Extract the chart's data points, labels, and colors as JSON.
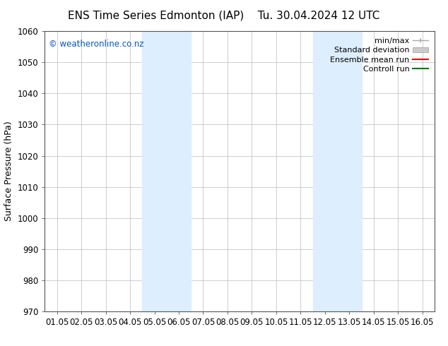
{
  "title_left": "ENS Time Series Edmonton (IAP)",
  "title_right": "Tu. 30.04.2024 12 UTC",
  "ylabel": "Surface Pressure (hPa)",
  "xlim_labels": [
    "01.05",
    "02.05",
    "03.05",
    "04.05",
    "05.05",
    "06.05",
    "07.05",
    "08.05",
    "09.05",
    "10.05",
    "11.05",
    "12.05",
    "13.05",
    "14.05",
    "15.05",
    "16.05"
  ],
  "ylim": [
    970,
    1060
  ],
  "yticks": [
    970,
    980,
    990,
    1000,
    1010,
    1020,
    1030,
    1040,
    1050,
    1060
  ],
  "shaded_bands": [
    {
      "xstart": 4,
      "xend": 6
    },
    {
      "xstart": 11,
      "xend": 13
    }
  ],
  "shaded_color": "#ddeeff",
  "watermark": "© weatheronline.co.nz",
  "watermark_color": "#0055cc",
  "background_color": "#ffffff",
  "legend_entries": [
    {
      "label": "min/max",
      "color": "#aaaaaa",
      "type": "minmax"
    },
    {
      "label": "Standard deviation",
      "color": "#cccccc",
      "type": "patch"
    },
    {
      "label": "Ensemble mean run",
      "color": "#ff0000",
      "type": "line"
    },
    {
      "label": "Controll run",
      "color": "#007700",
      "type": "line"
    }
  ],
  "grid_color": "#bbbbbb",
  "tick_label_fontsize": 8.5,
  "title_fontsize": 11,
  "ylabel_fontsize": 9,
  "watermark_fontsize": 8.5,
  "legend_fontsize": 8
}
